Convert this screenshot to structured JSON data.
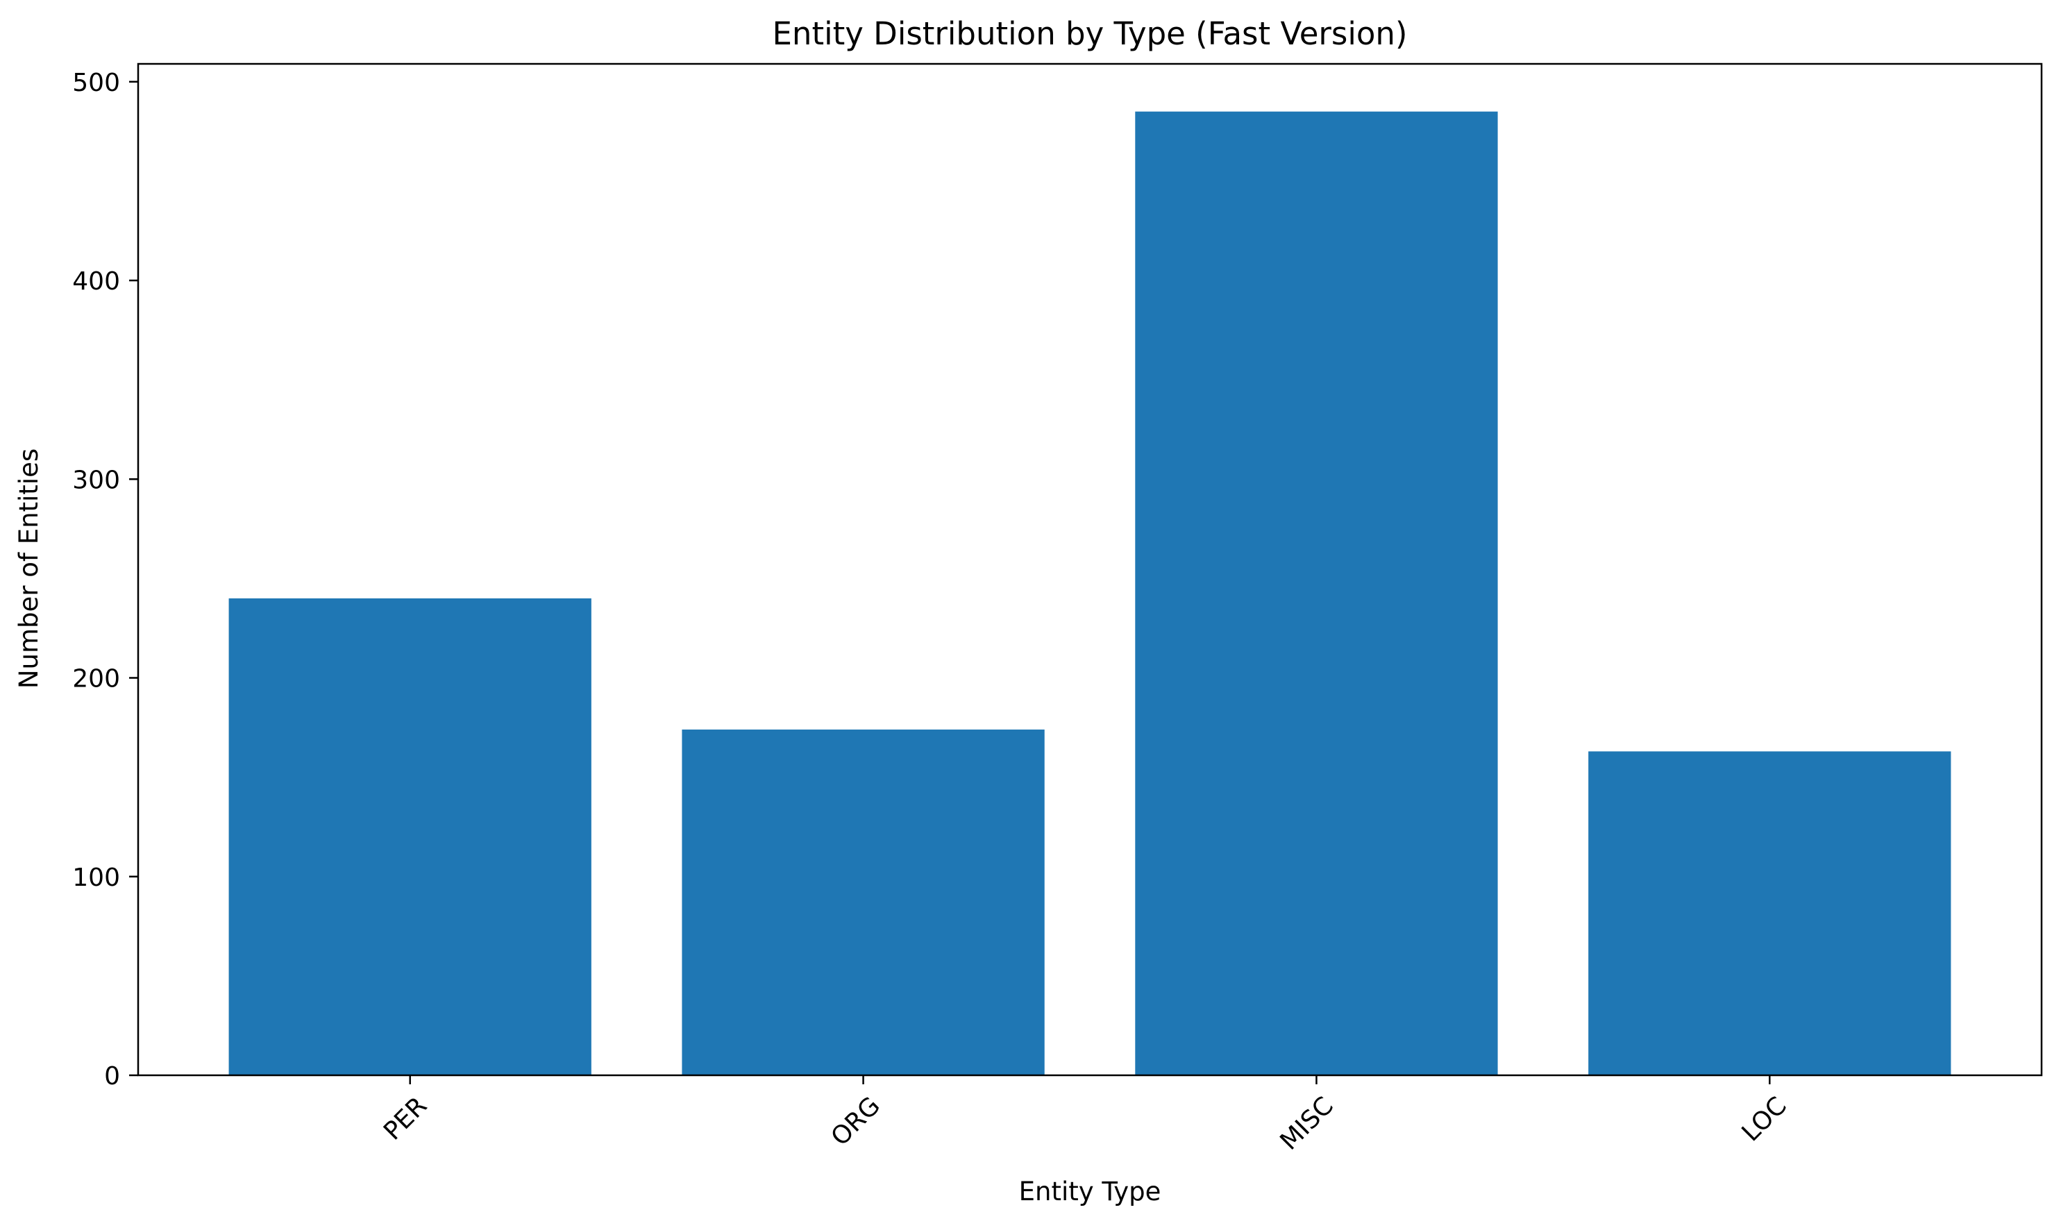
{
  "chart_data": {
    "type": "bar",
    "title": "Entity Distribution by Type (Fast Version)",
    "xlabel": "Entity Type",
    "ylabel": "Number of Entities",
    "categories": [
      "PER",
      "ORG",
      "MISC",
      "LOC"
    ],
    "values": [
      240,
      174,
      485,
      163
    ],
    "ylim": [
      0,
      509
    ],
    "yticks": [
      0,
      100,
      200,
      300,
      400,
      500
    ],
    "xtick_rotation_deg": 45,
    "grid": false,
    "legend": "none",
    "bar_color": "#1f77b4",
    "axis_color": "#000000",
    "background": "#ffffff"
  }
}
